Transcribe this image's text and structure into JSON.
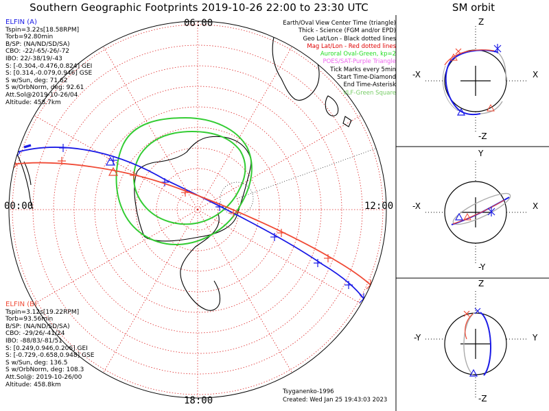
{
  "title": "Southern Geographic Footprints 2019-10-26 22:00 to 23:30 UTC",
  "sm_title": "SM orbit",
  "time_labels": {
    "top": "06:00",
    "left": "00:00",
    "right": "12:00",
    "bottom": "18:00"
  },
  "elfin_a": {
    "name": "ELFIN (A)",
    "lines": [
      "Tspin=3.22s[18.58RPM]",
      "Torb=92.80min",
      "B/SP: (NA/ND/SD/SA)",
      "CBO: -22/-65/-26/-72",
      "IBO: 22/-38/19/-43",
      "S: [-0.304,-0.476,0.824] GEI",
      "S: [0.314,-0.079,0.946] GSE",
      "S w/Sun, deg: 71.62",
      "S w/OrbNorm, deg: 92.61",
      "Att.Sol@2019-10-26/04",
      "Altitude: 458.7km"
    ]
  },
  "elfin_b": {
    "name": "ELFIN (B)",
    "lines": [
      "Tspin=3.12s[19.22RPM]",
      "Torb=93.56min",
      "B/SP: (NA/ND/SD/SA)",
      "CBO: -29/26/-41/24",
      "IBO: -88/83/-81/51",
      "S: [0.249,0.946,0.206] GEI",
      "S: [-0.729,-0.658,0.948] GSE",
      "S w/Sun, deg: 136.5",
      "S w/OrbNorm, deg: 108.3",
      "Att.Sol@: 2019-10-26/00",
      "Altitude: 458.8km"
    ]
  },
  "legend": [
    "Earth/Oval View Center Time (triangle)",
    "Thick - Science (FGM and/or EPD)",
    "Geo Lat/Lon - Black dotted lines",
    "Mag Lat/Lon - Red dotted lines",
    "Auroral Oval-Green, kp=2",
    "POES/SAT-Purple Triangle",
    "Tick Marks every 5min",
    "Start Time-Diamond",
    "End Time-Asterisk",
    "VLF-Green Square"
  ],
  "footer": {
    "model": "Tsyganenko-1996",
    "created": "Created: Wed Jan 25 19:43:03 2023"
  },
  "sm_panels": [
    {
      "top": "Z",
      "bottom": "-Z",
      "left": "-X",
      "right": "X"
    },
    {
      "top": "Y",
      "bottom": "-Y",
      "left": "-X",
      "right": "X"
    },
    {
      "top": "Z",
      "bottom": "-Z",
      "left": "-Y",
      "right": "Y"
    }
  ],
  "colors": {
    "elfin_a": "#1a1ae6",
    "elfin_b": "#f04a35",
    "geo_grid": "#000000",
    "mag_grid": "#dd2222",
    "auroral_oval": "#33cc33",
    "science": "#aaaaaa"
  }
}
